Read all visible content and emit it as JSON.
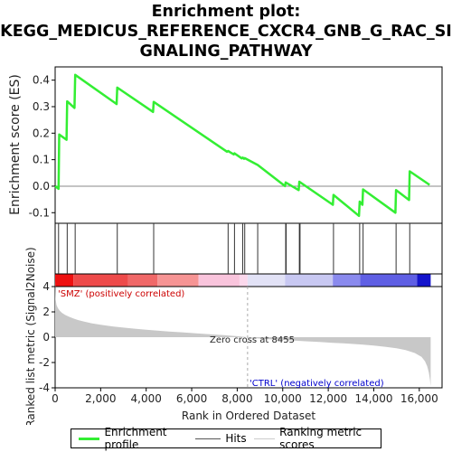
{
  "title_lines": [
    "Enrichment plot:",
    "KEGG_MEDICUS_REFERENCE_CXCR4_GNB_G_RAC_SI",
    "GNALING_PATHWAY"
  ],
  "legend": {
    "enrichment_profile": "Enrichment profile",
    "hits": "Hits",
    "ranking_metric_scores": "Ranking metric scores"
  },
  "colors": {
    "enrichment_line": "#33ee33",
    "hit_line": "#333333",
    "metric_fill": "#c8c8c8",
    "positive_label": "#cc0000",
    "negative_label": "#0000cc"
  },
  "chart_data": [
    {
      "type": "line",
      "name": "enrichment-score-panel",
      "ylabel": "Enrichment score (ES)",
      "xlim": [
        0,
        17000
      ],
      "ylim": [
        -0.14,
        0.45
      ],
      "yticks": [
        -0.1,
        0.0,
        0.1,
        0.2,
        0.3,
        0.4
      ],
      "ytick_labels": [
        "-0.1",
        "0.0",
        "0.1",
        "0.2",
        "0.3",
        "0.4"
      ],
      "zero_line": true,
      "series": [
        {
          "x": [
            0,
            150,
            180,
            500,
            530,
            850,
            880,
            2700,
            2730,
            4300,
            4330,
            7550,
            7600,
            7850,
            7880,
            8200,
            8240,
            8300,
            8330,
            8900,
            10100,
            10130,
            10700,
            10730,
            12200,
            12230,
            13350,
            13380,
            13500,
            13530,
            14950,
            14980,
            15550,
            15580,
            16450
          ],
          "y": [
            0.0,
            -0.01,
            0.195,
            0.175,
            0.32,
            0.295,
            0.42,
            0.31,
            0.372,
            0.28,
            0.318,
            0.13,
            0.133,
            0.12,
            0.124,
            0.105,
            0.108,
            0.103,
            0.106,
            0.08,
            0.0,
            0.014,
            -0.015,
            0.017,
            -0.07,
            -0.033,
            -0.112,
            -0.058,
            -0.07,
            -0.012,
            -0.1,
            -0.015,
            -0.052,
            0.056,
            0.005
          ]
        }
      ]
    },
    {
      "type": "hits",
      "name": "hit-barcode",
      "hits": [
        150,
        530,
        880,
        2730,
        4330,
        7600,
        7880,
        8240,
        8330,
        8900,
        10130,
        10150,
        10730,
        10760,
        12230,
        13380,
        13530,
        14980,
        15580
      ]
    },
    {
      "type": "heatmap",
      "name": "rank-color-strip",
      "segments": [
        {
          "from": 0,
          "to": 800,
          "color": "#ee1111"
        },
        {
          "from": 800,
          "to": 3200,
          "color": "#ee4a4a"
        },
        {
          "from": 3200,
          "to": 4500,
          "color": "#f06868"
        },
        {
          "from": 4500,
          "to": 6300,
          "color": "#f69494"
        },
        {
          "from": 6300,
          "to": 8100,
          "color": "#f9c4dc"
        },
        {
          "from": 8100,
          "to": 8455,
          "color": "#fbd8ec"
        },
        {
          "from": 8455,
          "to": 10100,
          "color": "#e2e2f6"
        },
        {
          "from": 10100,
          "to": 12200,
          "color": "#c8c8f2"
        },
        {
          "from": 12200,
          "to": 13400,
          "color": "#8a8aee"
        },
        {
          "from": 13400,
          "to": 15900,
          "color": "#5f5fe4"
        },
        {
          "from": 15900,
          "to": 16500,
          "color": "#1414cc"
        }
      ]
    },
    {
      "type": "area",
      "name": "ranked-list-metric-panel",
      "ylabel": "Ranked list metric (Signal2Noise)",
      "xlabel": "Rank in Ordered Dataset",
      "xlim": [
        0,
        17000
      ],
      "ylim": [
        -4,
        4
      ],
      "xticks": [
        0,
        2000,
        4000,
        6000,
        8000,
        10000,
        12000,
        14000,
        16000
      ],
      "xtick_labels": [
        "0",
        "2,000",
        "4,000",
        "6,000",
        "8,000",
        "10,000",
        "12,000",
        "14,000",
        "16,000"
      ],
      "yticks": [
        -4,
        -2,
        0,
        2,
        4
      ],
      "ytick_labels": [
        "-4",
        "-2",
        "0",
        "2",
        "4"
      ],
      "x": [
        0,
        20,
        60,
        120,
        200,
        300,
        450,
        600,
        800,
        1000,
        1300,
        1600,
        2000,
        2500,
        3000,
        3500,
        4000,
        4500,
        5000,
        5500,
        6000,
        6500,
        7000,
        7500,
        8000,
        8455,
        8800,
        9200,
        9800,
        10400,
        11000,
        11600,
        12200,
        12800,
        13400,
        14000,
        14500,
        15000,
        15400,
        15800,
        16100,
        16250,
        16350,
        16420,
        16470,
        16500
      ],
      "y": [
        4.6,
        3.0,
        2.55,
        2.3,
        2.1,
        1.92,
        1.75,
        1.62,
        1.48,
        1.36,
        1.22,
        1.1,
        0.98,
        0.86,
        0.76,
        0.67,
        0.59,
        0.52,
        0.45,
        0.39,
        0.33,
        0.27,
        0.21,
        0.15,
        0.08,
        0.0,
        -0.08,
        -0.14,
        -0.2,
        -0.26,
        -0.32,
        -0.38,
        -0.44,
        -0.5,
        -0.57,
        -0.66,
        -0.76,
        -0.88,
        -1.02,
        -1.25,
        -1.55,
        -1.9,
        -2.3,
        -2.8,
        -3.4,
        -3.9
      ],
      "annotations": {
        "zero_cross": "Zero cross at 8455",
        "zero_cross_rank": 8455,
        "positive": "'SMZ' (positively correlated)",
        "negative": "'CTRL' (negatively correlated)"
      }
    }
  ]
}
